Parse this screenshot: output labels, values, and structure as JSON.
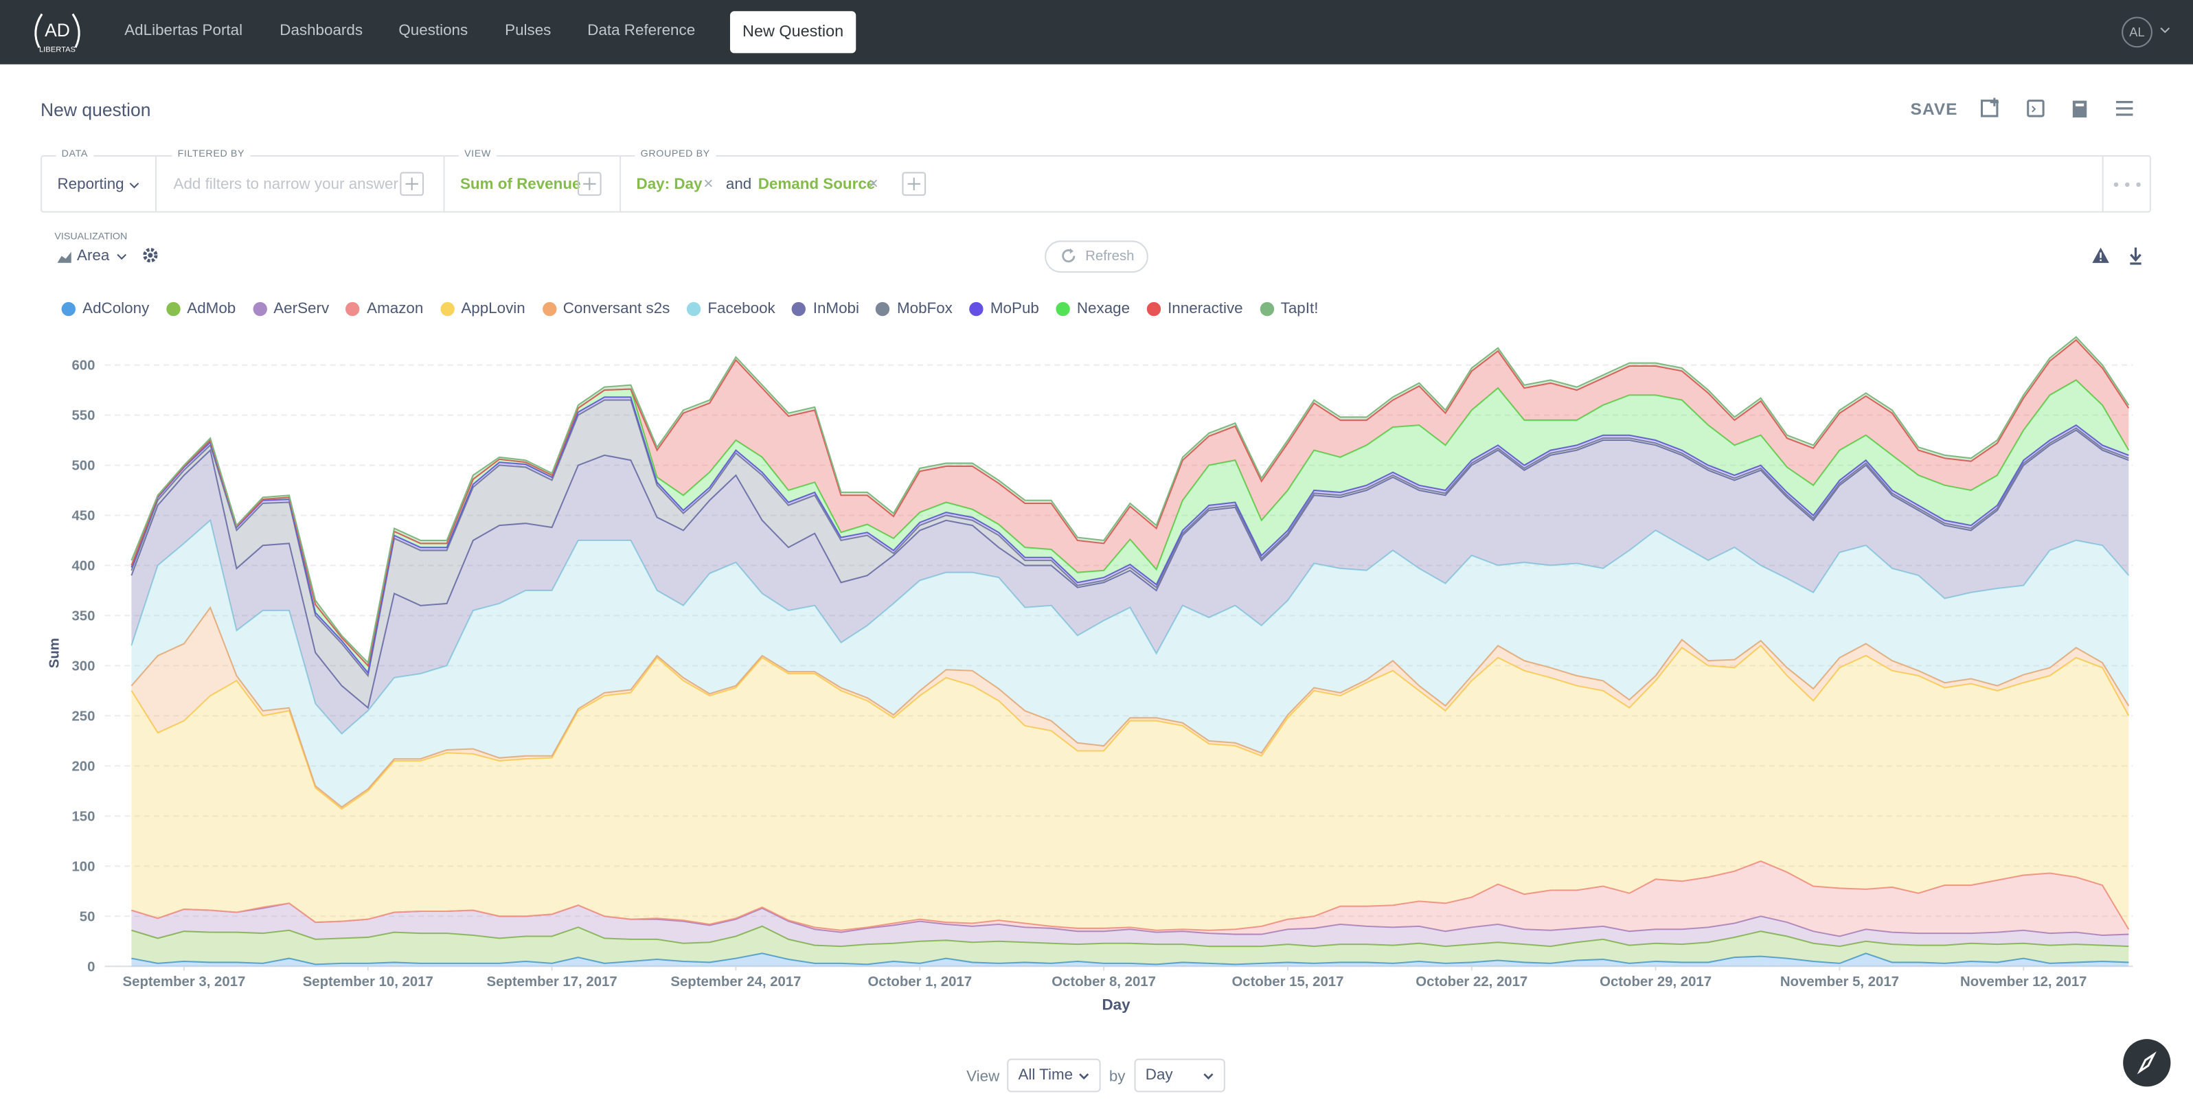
{
  "nav": {
    "logo_top": "AD",
    "logo_bottom": "LIBERTAS",
    "links": [
      "AdLibertas Portal",
      "Dashboards",
      "Questions",
      "Pulses",
      "Data Reference"
    ],
    "button": "New Question",
    "avatar": "AL"
  },
  "header": {
    "title": "New question",
    "save": "SAVE"
  },
  "query": {
    "data_label": "DATA",
    "data_value": "Reporting",
    "filter_label": "FILTERED BY",
    "filter_placeholder": "Add filters to narrow your answer",
    "view_label": "VIEW",
    "view_value": "Sum of Revenue",
    "group_label": "GROUPED BY",
    "group_values": [
      "Day: Day",
      "Demand Source"
    ],
    "group_joiner": "and"
  },
  "visualization": {
    "label": "VISUALIZATION",
    "type_name": "Area",
    "refresh": "Refresh"
  },
  "chart_data": {
    "type": "area",
    "stacked": true,
    "x_label": "Day",
    "y_label": "Sum",
    "grid": true,
    "legend": "top",
    "x": [
      "2017-09-01",
      "2017-09-02",
      "2017-09-03",
      "2017-09-04",
      "2017-09-05",
      "2017-09-06",
      "2017-09-07",
      "2017-09-08",
      "2017-09-09",
      "2017-09-10",
      "2017-09-11",
      "2017-09-12",
      "2017-09-13",
      "2017-09-14",
      "2017-09-15",
      "2017-09-16",
      "2017-09-17",
      "2017-09-18",
      "2017-09-19",
      "2017-09-20",
      "2017-09-21",
      "2017-09-22",
      "2017-09-23",
      "2017-09-24",
      "2017-09-25",
      "2017-09-26",
      "2017-09-27",
      "2017-09-28",
      "2017-09-29",
      "2017-09-30",
      "2017-10-01",
      "2017-10-02",
      "2017-10-03",
      "2017-10-04",
      "2017-10-05",
      "2017-10-06",
      "2017-10-07",
      "2017-10-08",
      "2017-10-09",
      "2017-10-10",
      "2017-10-11",
      "2017-10-12",
      "2017-10-13",
      "2017-10-14",
      "2017-10-15",
      "2017-10-16",
      "2017-10-17",
      "2017-10-18",
      "2017-10-19",
      "2017-10-20",
      "2017-10-21",
      "2017-10-22",
      "2017-10-23",
      "2017-10-24",
      "2017-10-25",
      "2017-10-26",
      "2017-10-27",
      "2017-10-28",
      "2017-10-29",
      "2017-10-30",
      "2017-10-31",
      "2017-11-01",
      "2017-11-02",
      "2017-11-03",
      "2017-11-04",
      "2017-11-05",
      "2017-11-06",
      "2017-11-07",
      "2017-11-08",
      "2017-11-09",
      "2017-11-10",
      "2017-11-11",
      "2017-11-12",
      "2017-11-13",
      "2017-11-14",
      "2017-11-15",
      "2017-11-16"
    ],
    "xticks": [
      {
        "value": "2017-09-03",
        "label": "September 3, 2017"
      },
      {
        "value": "2017-09-10",
        "label": "September 10, 2017"
      },
      {
        "value": "2017-09-17",
        "label": "September 17, 2017"
      },
      {
        "value": "2017-09-24",
        "label": "September 24, 2017"
      },
      {
        "value": "2017-10-01",
        "label": "October 1, 2017"
      },
      {
        "value": "2017-10-08",
        "label": "October 8, 2017"
      },
      {
        "value": "2017-10-15",
        "label": "October 15, 2017"
      },
      {
        "value": "2017-10-22",
        "label": "October 22, 2017"
      },
      {
        "value": "2017-10-29",
        "label": "October 29, 2017"
      },
      {
        "value": "2017-11-05",
        "label": "November 5, 2017"
      },
      {
        "value": "2017-11-12",
        "label": "November 12, 2017"
      }
    ],
    "ylim": [
      0,
      630
    ],
    "yticks": [
      0,
      50,
      100,
      150,
      200,
      250,
      300,
      350,
      400,
      450,
      500,
      550,
      600
    ],
    "series": [
      {
        "name": "AdColony",
        "color": "#509EE3",
        "values": [
          8,
          3,
          5,
          4,
          4,
          3,
          8,
          2,
          3,
          3,
          4,
          3,
          3,
          3,
          3,
          5,
          3,
          9,
          3,
          5,
          7,
          5,
          4,
          8,
          13,
          7,
          3,
          3,
          2,
          5,
          3,
          8,
          4,
          3,
          4,
          3,
          5,
          3,
          3,
          2,
          4,
          3,
          2,
          3,
          4,
          3,
          4,
          4,
          3,
          5,
          3,
          4,
          6,
          4,
          3,
          6,
          7,
          3,
          5,
          4,
          4,
          9,
          10,
          8,
          5,
          3,
          13,
          4,
          4,
          3,
          5,
          4,
          8,
          3,
          4,
          5,
          4
        ]
      },
      {
        "name": "AdMob",
        "color": "#88BF4D",
        "values": [
          28,
          25,
          30,
          30,
          30,
          30,
          28,
          25,
          25,
          26,
          30,
          30,
          30,
          28,
          25,
          25,
          27,
          30,
          25,
          22,
          20,
          18,
          20,
          22,
          27,
          20,
          18,
          17,
          20,
          18,
          22,
          18,
          20,
          22,
          20,
          20,
          17,
          20,
          20,
          20,
          18,
          17,
          18,
          17,
          18,
          17,
          18,
          18,
          18,
          18,
          17,
          18,
          18,
          18,
          17,
          18,
          20,
          18,
          18,
          18,
          20,
          20,
          25,
          22,
          18,
          17,
          12,
          18,
          17,
          18,
          18,
          18,
          15,
          18,
          18,
          16,
          16
        ]
      },
      {
        "name": "AerServ",
        "color": "#A989C5",
        "values": [
          20,
          20,
          22,
          22,
          20,
          25,
          27,
          17,
          17,
          18,
          20,
          22,
          22,
          25,
          22,
          20,
          22,
          22,
          22,
          20,
          20,
          22,
          17,
          17,
          18,
          18,
          16,
          14,
          16,
          18,
          20,
          16,
          16,
          17,
          15,
          15,
          13,
          12,
          14,
          12,
          13,
          13,
          12,
          12,
          15,
          18,
          20,
          18,
          18,
          17,
          15,
          17,
          18,
          15,
          16,
          14,
          13,
          14,
          14,
          15,
          15,
          14,
          15,
          14,
          12,
          10,
          12,
          12,
          12,
          12,
          10,
          12,
          13,
          12,
          12,
          10,
          12
        ]
      },
      {
        "name": "Amazon",
        "color": "#EF8C8C",
        "values": [
          0,
          0,
          0,
          0,
          0,
          1,
          0,
          0,
          0,
          0,
          0,
          0,
          0,
          0,
          0,
          0,
          0,
          0,
          0,
          0,
          1,
          1,
          1,
          1,
          1,
          1,
          2,
          2,
          1,
          2,
          2,
          2,
          3,
          4,
          4,
          2,
          3,
          3,
          2,
          2,
          2,
          3,
          5,
          8,
          10,
          12,
          18,
          20,
          22,
          25,
          28,
          30,
          40,
          35,
          40,
          38,
          40,
          38,
          50,
          48,
          50,
          52,
          55,
          50,
          45,
          48,
          40,
          45,
          40,
          48,
          48,
          52,
          55,
          60,
          55,
          50,
          5
        ]
      },
      {
        "name": "AppLovin",
        "color": "#F9D45C",
        "values": [
          219,
          185,
          188,
          214,
          231,
          191,
          192,
          134,
          112,
          128,
          151,
          150,
          158,
          156,
          155,
          157,
          156,
          194,
          220,
          226,
          260,
          239,
          228,
          230,
          249,
          246,
          253,
          239,
          226,
          205,
          223,
          244,
          237,
          219,
          197,
          195,
          177,
          177,
          206,
          209,
          203,
          186,
          183,
          170,
          201,
          225,
          210,
          223,
          234,
          210,
          192,
          216,
          226,
          223,
          212,
          204,
          195,
          185,
          198,
          233,
          211,
          203,
          215,
          196,
          185,
          220,
          233,
          216,
          217,
          197,
          201,
          189,
          192,
          197,
          219,
          217,
          213
        ]
      },
      {
        "name": "Conversant s2s",
        "color": "#F2A86F",
        "values": [
          5,
          77,
          77,
          88,
          5,
          5,
          3,
          2,
          2,
          2,
          2,
          2,
          3,
          5,
          3,
          3,
          2,
          2,
          3,
          3,
          2,
          3,
          2,
          2,
          2,
          2,
          2,
          3,
          3,
          3,
          5,
          8,
          15,
          12,
          15,
          10,
          8,
          5,
          3,
          3,
          3,
          3,
          3,
          3,
          3,
          3,
          3,
          3,
          10,
          5,
          5,
          5,
          12,
          10,
          10,
          10,
          10,
          8,
          5,
          8,
          5,
          8,
          5,
          8,
          12,
          10,
          12,
          10,
          5,
          5,
          5,
          5,
          8,
          8,
          10,
          5,
          10
        ]
      },
      {
        "name": "Facebook",
        "color": "#98D9E8",
        "values": [
          40,
          90,
          100,
          87,
          45,
          100,
          97,
          82,
          73,
          78,
          81,
          85,
          84,
          138,
          154,
          165,
          165,
          168,
          152,
          149,
          65,
          72,
          120,
          123,
          62,
          61,
          66,
          45,
          72,
          111,
          110,
          97,
          98,
          111,
          103,
          115,
          107,
          125,
          110,
          64,
          117,
          123,
          137,
          127,
          114,
          124,
          124,
          109,
          110,
          117,
          122,
          120,
          80,
          98,
          102,
          112,
          112,
          149,
          145,
          94,
          100,
          112,
          75,
          89,
          96,
          105,
          98,
          92,
          95,
          84,
          86,
          97,
          89,
          117,
          107,
          117,
          130
        ]
      },
      {
        "name": "InMobi",
        "color": "#7172AD",
        "values": [
          70,
          60,
          68,
          70,
          62,
          65,
          67,
          51,
          48,
          3,
          84,
          68,
          62,
          70,
          78,
          67,
          63,
          75,
          85,
          80,
          73,
          75,
          73,
          87,
          73,
          63,
          72,
          60,
          50,
          48,
          50,
          52,
          47,
          30,
          42,
          40,
          48,
          38,
          37,
          63,
          70,
          107,
          98,
          65,
          65,
          68,
          71,
          80,
          73,
          78,
          88,
          90,
          115,
          92,
          110,
          113,
          128,
          110,
          85,
          90,
          90,
          67,
          95,
          81,
          72,
          67,
          80,
          73,
          65,
          73,
          62,
          78,
          120,
          105,
          110,
          95,
          115
        ]
      },
      {
        "name": "MobFox",
        "color": "#7B8797",
        "values": [
          5,
          5,
          5,
          5,
          38,
          42,
          41,
          37,
          42,
          32,
          55,
          55,
          53,
          53,
          60,
          56,
          47,
          50,
          55,
          60,
          32,
          17,
          10,
          22,
          45,
          42,
          38,
          42,
          40,
          2,
          5,
          5,
          5,
          12,
          5,
          5,
          2,
          2,
          3,
          3,
          2,
          2,
          2,
          2,
          2,
          2,
          2,
          2,
          2,
          2,
          2,
          2,
          2,
          2,
          2,
          2,
          2,
          2,
          2,
          2,
          2,
          2,
          2,
          2,
          2,
          2,
          2,
          2,
          2,
          2,
          2,
          2,
          2,
          2,
          2,
          2,
          2
        ]
      },
      {
        "name": "MoPub",
        "color": "#6450E3",
        "values": [
          3,
          3,
          3,
          3,
          3,
          3,
          3,
          3,
          3,
          3,
          3,
          3,
          3,
          3,
          3,
          3,
          3,
          3,
          3,
          3,
          3,
          3,
          3,
          3,
          3,
          3,
          3,
          3,
          3,
          3,
          3,
          3,
          3,
          3,
          3,
          3,
          3,
          3,
          3,
          3,
          3,
          3,
          3,
          3,
          3,
          3,
          3,
          3,
          3,
          3,
          3,
          3,
          3,
          3,
          3,
          3,
          3,
          3,
          3,
          3,
          3,
          3,
          3,
          3,
          3,
          3,
          3,
          3,
          3,
          3,
          3,
          3,
          3,
          3,
          3,
          3,
          3
        ]
      },
      {
        "name": "Nexage",
        "color": "#55E155",
        "values": [
          2,
          1,
          1,
          2,
          1,
          1,
          2,
          8,
          3,
          7,
          4,
          4,
          4,
          5,
          3,
          2,
          2,
          4,
          7,
          8,
          5,
          15,
          15,
          10,
          15,
          12,
          10,
          5,
          8,
          12,
          10,
          10,
          8,
          8,
          10,
          8,
          10,
          7,
          25,
          15,
          30,
          40,
          42,
          35,
          40,
          40,
          35,
          40,
          45,
          60,
          45,
          50,
          57,
          45,
          30,
          25,
          30,
          40,
          45,
          50,
          40,
          30,
          30,
          25,
          30,
          30,
          25,
          35,
          30,
          35,
          35,
          30,
          30,
          45,
          45,
          40,
          5
        ]
      },
      {
        "name": "Inneractive",
        "color": "#E75454",
        "values": [
          0,
          0,
          0,
          0,
          0,
          0,
          0,
          0,
          0,
          0,
          0,
          0,
          0,
          0,
          0,
          0,
          0,
          0,
          0,
          0,
          27,
          82,
          69,
          80,
          69,
          74,
          72,
          37,
          29,
          22,
          41,
          36,
          43,
          41,
          44,
          46,
          32,
          27,
          33,
          41,
          40,
          29,
          34,
          39,
          47,
          47,
          37,
          25,
          27,
          39,
          32,
          39,
          37,
          32,
          37,
          30,
          27,
          29,
          29,
          29,
          32,
          25,
          34,
          29,
          37,
          37,
          39,
          42,
          25,
          27,
          29,
          32,
          32,
          34,
          40,
          37,
          42
        ]
      },
      {
        "name": "TapIt!",
        "color": "#7EB77F",
        "values": [
          5,
          1,
          1,
          2,
          1,
          2,
          2,
          4,
          2,
          3,
          3,
          3,
          3,
          4,
          2,
          2,
          2,
          3,
          3,
          4,
          3,
          3,
          3,
          3,
          3,
          3,
          3,
          3,
          3,
          3,
          3,
          3,
          3,
          3,
          3,
          3,
          3,
          3,
          3,
          3,
          3,
          3,
          3,
          3,
          3,
          3,
          3,
          3,
          3,
          3,
          3,
          3,
          3,
          3,
          3,
          3,
          3,
          3,
          3,
          3,
          3,
          3,
          3,
          3,
          3,
          3,
          3,
          3,
          3,
          3,
          3,
          3,
          3,
          3,
          3,
          3,
          3
        ]
      }
    ]
  },
  "footer": {
    "view_label": "View",
    "view_value": "All Time",
    "by_label": "by",
    "by_value": "Day"
  }
}
